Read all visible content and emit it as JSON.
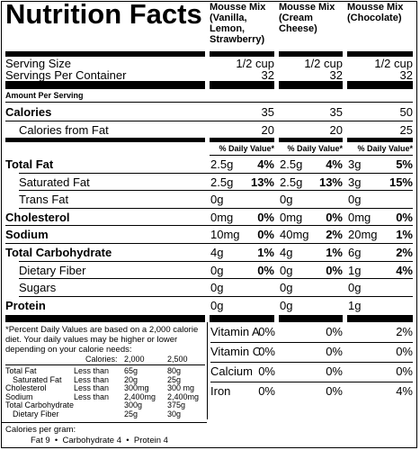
{
  "title": "Nutrition Facts",
  "columns": [
    {
      "name": "Mousse Mix (Vanilla, Lemon, Strawberry)",
      "serving_size": "1/2 cup",
      "servings": "32",
      "calories": "35",
      "calories_fat": "20"
    },
    {
      "name": "Mousse Mix (Cream Cheese)",
      "serving_size": "1/2 cup",
      "servings": "32",
      "calories": "35",
      "calories_fat": "20"
    },
    {
      "name": "Mousse Mix (Chocolate)",
      "serving_size": "1/2 cup",
      "servings": "32",
      "calories": "50",
      "calories_fat": "25"
    }
  ],
  "labels": {
    "serving_size": "Serving Size",
    "servings_per_container": "Servings Per Container",
    "amount_per_serving": "Amount Per Serving",
    "calories": "Calories",
    "calories_from_fat": "Calories from Fat",
    "daily_value": "% Daily Value*"
  },
  "nutrients": [
    {
      "label": "Total Fat",
      "bold": true,
      "vals": [
        [
          "2.5g",
          "4%"
        ],
        [
          "2.5g",
          "4%"
        ],
        [
          "3g",
          "5%"
        ]
      ]
    },
    {
      "label": "Saturated Fat",
      "bold": false,
      "indent": true,
      "vals": [
        [
          "2.5g",
          "13%"
        ],
        [
          "2.5g",
          "13%"
        ],
        [
          "3g",
          "15%"
        ]
      ]
    },
    {
      "label": "Trans Fat",
      "bold": false,
      "indent": true,
      "vals": [
        [
          "0g",
          ""
        ],
        [
          "0g",
          ""
        ],
        [
          "0g",
          ""
        ]
      ]
    },
    {
      "label": "Cholesterol",
      "bold": true,
      "vals": [
        [
          "0mg",
          "0%"
        ],
        [
          "0mg",
          "0%"
        ],
        [
          "0mg",
          "0%"
        ]
      ]
    },
    {
      "label": "Sodium",
      "bold": true,
      "vals": [
        [
          "10mg",
          "0%"
        ],
        [
          "40mg",
          "2%"
        ],
        [
          "20mg",
          "1%"
        ]
      ]
    },
    {
      "label": "Total Carbohydrate",
      "bold": true,
      "vals": [
        [
          "4g",
          "1%"
        ],
        [
          "4g",
          "1%"
        ],
        [
          "6g",
          "2%"
        ]
      ]
    },
    {
      "label": "Dietary Fiber",
      "bold": false,
      "indent": true,
      "vals": [
        [
          "0g",
          "0%"
        ],
        [
          "0g",
          "0%"
        ],
        [
          "1g",
          "4%"
        ]
      ]
    },
    {
      "label": "Sugars",
      "bold": false,
      "indent": true,
      "vals": [
        [
          "0g",
          ""
        ],
        [
          "0g",
          ""
        ],
        [
          "0g",
          ""
        ]
      ]
    },
    {
      "label": "Protein",
      "bold": true,
      "vals": [
        [
          "0g",
          ""
        ],
        [
          "0g",
          ""
        ],
        [
          "1g",
          ""
        ]
      ]
    }
  ],
  "vitamins": [
    {
      "label": "Vitamin A",
      "vals": [
        "0%",
        "0%",
        "2%"
      ]
    },
    {
      "label": "Vitamin C",
      "vals": [
        "0%",
        "0%",
        "0%"
      ]
    },
    {
      "label": "Calcium",
      "vals": [
        "0%",
        "0%",
        "0%"
      ]
    },
    {
      "label": "Iron",
      "vals": [
        "0%",
        "0%",
        "4%"
      ]
    }
  ],
  "footnote": {
    "intro": "*Percent Daily Values are based on a 2,000 calorie diet. Your daily values may be higher or lower depending on your calorie needs:",
    "calories_label": "Calories:",
    "cal_2000": "2,000",
    "cal_2500": "2,500",
    "rows": [
      {
        "name": "Total Fat",
        "cond": "Less than",
        "a": "65g",
        "b": "80g"
      },
      {
        "name": "Saturated Fat",
        "cond": "Less than",
        "a": "20g",
        "b": "25g"
      },
      {
        "name": "Cholesterol",
        "cond": "Less than",
        "a": "300mg",
        "b": "300 mg"
      },
      {
        "name": "Sodium",
        "cond": "Less than",
        "a": "2,400mg",
        "b": "2,400mg"
      },
      {
        "name": "Total Carbohydrate",
        "cond": "",
        "a": "300g",
        "b": "375g"
      },
      {
        "name": "Dietary Fiber",
        "cond": "",
        "a": "25g",
        "b": "30g"
      }
    ],
    "cal_per_gram": "Calories per gram:",
    "cal_per_gram_detail": "Fat 9  •  Carbohydrate 4  •  Protein 4"
  }
}
